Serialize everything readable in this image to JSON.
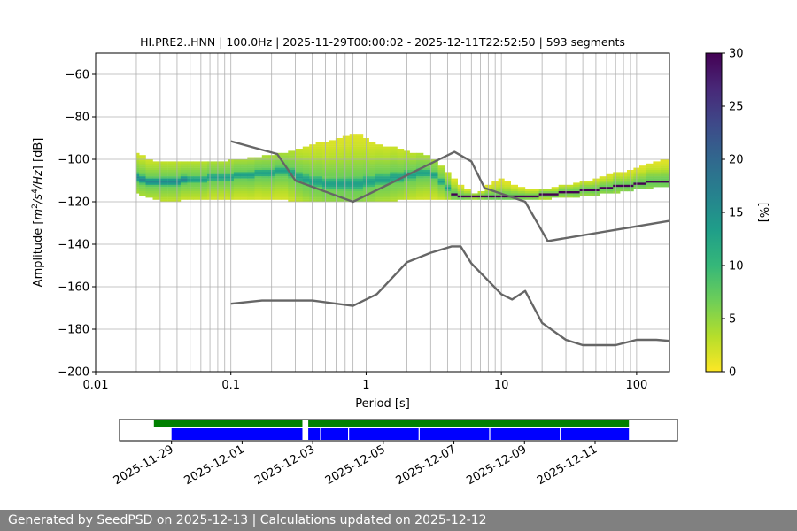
{
  "chart_data": [
    {
      "type": "heatmap",
      "title": "HI.PRE2..HNN | 100.0Hz | 2025-11-29T00:00:02 - 2025-12-11T22:52:50 | 593 segments",
      "xlabel": "Period [s]",
      "ylabel_parts": [
        "Amplitude [",
        "m",
        "2",
        "/",
        "s",
        "4",
        "/Hz",
        "] [dB]"
      ],
      "x_scale": "log",
      "xlim": [
        0.01,
        175
      ],
      "ylim": [
        -200,
        -50
      ],
      "x_ticks": [
        0.01,
        0.1,
        1,
        10,
        100
      ],
      "x_tick_labels": [
        "0.01",
        "0.1",
        "1",
        "10",
        "100"
      ],
      "y_ticks": [
        -200,
        -180,
        -160,
        -140,
        -120,
        -100,
        -80,
        -60
      ],
      "y_tick_labels": [
        "−200",
        "−180",
        "−160",
        "−140",
        "−120",
        "−100",
        "−80",
        "−60"
      ],
      "grid": true,
      "colormap": "viridis_r",
      "colorbar": {
        "label": "[%]",
        "range": [
          0,
          30
        ],
        "ticks": [
          0,
          5,
          10,
          15,
          20,
          25,
          30
        ],
        "tick_labels": [
          "0",
          "5",
          "10",
          "15",
          "20",
          "25",
          "30"
        ],
        "colors": [
          "#fde725",
          "#b5de2b",
          "#6ece58",
          "#35b779",
          "#1f9e89",
          "#26828e",
          "#31688e",
          "#3e4989",
          "#482878",
          "#440154"
        ]
      },
      "period_grid_s": [
        0.02,
        0.022,
        0.025,
        0.028,
        0.032,
        0.036,
        0.04,
        0.045,
        0.05,
        0.056,
        0.063,
        0.071,
        0.08,
        0.09,
        0.1,
        0.11,
        0.125,
        0.14,
        0.16,
        0.18,
        0.2,
        0.22,
        0.25,
        0.28,
        0.32,
        0.36,
        0.4,
        0.45,
        0.5,
        0.56,
        0.63,
        0.71,
        0.8,
        0.9,
        1.0,
        1.1,
        1.25,
        1.4,
        1.6,
        1.8,
        2.0,
        2.2,
        2.5,
        2.8,
        3.2,
        3.6,
        4.0,
        4.5,
        5.0,
        5.6,
        6.3,
        7.1,
        8.0,
        9.0,
        10,
        11,
        12.5,
        14,
        16,
        18,
        20,
        22,
        25,
        28,
        32,
        36,
        40,
        45,
        50,
        56,
        63,
        71,
        80,
        90,
        100,
        110,
        125,
        140,
        160,
        175
      ],
      "psd_mode_db": [
        -108,
        -109,
        -110,
        -110,
        -110,
        -110,
        -110,
        -109,
        -109,
        -109,
        -109,
        -108,
        -108,
        -108,
        -108,
        -107,
        -107,
        -107,
        -106,
        -106,
        -106,
        -105,
        -105,
        -106,
        -108,
        -109,
        -110,
        -110,
        -111,
        -111,
        -111,
        -111,
        -111,
        -111,
        -110,
        -110,
        -109,
        -109,
        -108,
        -108,
        -107,
        -107,
        -106,
        -106,
        -107,
        -110,
        -113,
        -116,
        -117,
        -117,
        -117,
        -117,
        -117,
        -117,
        -117,
        -117,
        -117,
        -117,
        -117,
        -117,
        -116,
        -116,
        -116,
        -115,
        -115,
        -115,
        -114,
        -114,
        -114,
        -113,
        -113,
        -112,
        -112,
        -112,
        -111,
        -111,
        -110,
        -110,
        -110,
        -110
      ],
      "band_upper_db": [
        -97,
        -98,
        -100,
        -101,
        -101,
        -101,
        -101,
        -101,
        -101,
        -101,
        -101,
        -101,
        -101,
        -101,
        -100,
        -100,
        -100,
        -99,
        -99,
        -98,
        -98,
        -97,
        -97,
        -96,
        -95,
        -94,
        -93,
        -92,
        -92,
        -91,
        -90,
        -89,
        -88,
        -88,
        -90,
        -92,
        -93,
        -94,
        -94,
        -95,
        -96,
        -97,
        -97,
        -98,
        -100,
        -103,
        -106,
        -109,
        -112,
        -114,
        -116,
        -115,
        -112,
        -110,
        -109,
        -110,
        -112,
        -113,
        -114,
        -114,
        -114,
        -114,
        -113,
        -112,
        -112,
        -111,
        -110,
        -110,
        -109,
        -108,
        -107,
        -106,
        -106,
        -105,
        -104,
        -103,
        -102,
        -101,
        -100,
        -100
      ],
      "band_lower_db": [
        -116,
        -117,
        -118,
        -119,
        -120,
        -120,
        -120,
        -119,
        -119,
        -119,
        -119,
        -119,
        -119,
        -119,
        -119,
        -119,
        -119,
        -119,
        -119,
        -119,
        -119,
        -119,
        -119,
        -120,
        -120,
        -120,
        -120,
        -120,
        -120,
        -120,
        -120,
        -120,
        -120,
        -120,
        -120,
        -120,
        -120,
        -120,
        -120,
        -119,
        -119,
        -119,
        -119,
        -119,
        -119,
        -119,
        -119,
        -119,
        -119,
        -119,
        -119,
        -119,
        -119,
        -119,
        -119,
        -119,
        -119,
        -119,
        -119,
        -119,
        -119,
        -119,
        -118,
        -118,
        -118,
        -118,
        -117,
        -117,
        -117,
        -116,
        -116,
        -116,
        -115,
        -115,
        -114,
        -114,
        -114,
        -113,
        -113,
        -113
      ],
      "series": [
        {
          "name": "",
          "color": "#666666",
          "x": [
            0.1,
            0.22,
            0.3,
            0.8,
            4.5,
            6.0,
            7.5,
            15,
            22,
            175
          ],
          "y": [
            -91.5,
            -97.5,
            -110,
            -120,
            -96.5,
            -101,
            -113.5,
            -120,
            -138.5,
            -129
          ]
        },
        {
          "name": "",
          "color": "#666666",
          "x": [
            0.1,
            0.17,
            0.4,
            0.8,
            1.2,
            2.0,
            3.0,
            4.3,
            5.0,
            6.0,
            10,
            12,
            15,
            20,
            30,
            40,
            70,
            100,
            140,
            175
          ],
          "y": [
            -168,
            -166.5,
            -166.5,
            -169,
            -163.5,
            -148.5,
            -144,
            -141,
            -141,
            -149,
            -163.5,
            -166,
            -162,
            -177,
            -185,
            -187.5,
            -187.5,
            -185,
            -185,
            -185.5
          ]
        }
      ]
    },
    {
      "type": "timeline",
      "x_tick_labels": [
        "2025-11-29",
        "2025-12-01",
        "2025-12-03",
        "2025-12-05",
        "2025-12-07",
        "2025-12-09",
        "2025-12-11"
      ],
      "tracks": [
        {
          "color": "#008000",
          "segments": [
            [
              "2025-11-28T12:00:00",
              "2025-12-02T17:00:00"
            ],
            [
              "2025-12-02T21:00:00",
              "2025-12-11T23:00:00"
            ]
          ]
        },
        {
          "color": "#0000ff",
          "segments": [
            [
              "2025-11-29T00:00:00",
              "2025-12-02T17:00:00"
            ],
            [
              "2025-12-02T21:00:00",
              "2025-12-11T23:00:00"
            ]
          ],
          "gaps": [
            "2025-12-03T05:00:00",
            "2025-12-04T00:00:00",
            "2025-12-06T00:00:00",
            "2025-12-08T00:00:00",
            "2025-12-10T00:00:00"
          ]
        }
      ]
    }
  ],
  "footer": {
    "text": "Generated by SeedPSD on 2025-12-13 | Calculations updated on 2025-12-12"
  }
}
